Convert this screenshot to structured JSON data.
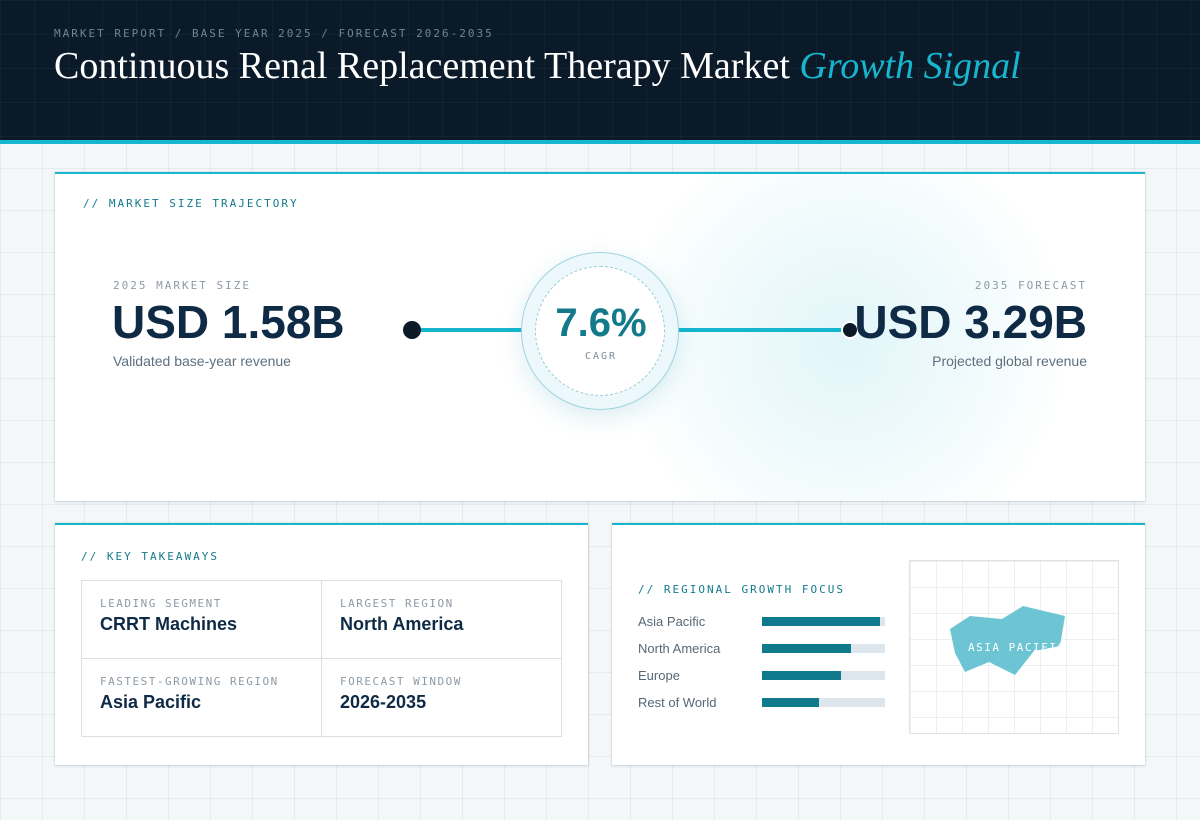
{
  "header": {
    "eyebrow": "MARKET REPORT / BASE YEAR 2025 / FORECAST 2026-2035",
    "title_main": "Continuous Renal Replacement Therapy Market",
    "title_accent": "Growth Signal"
  },
  "trajectory": {
    "label": "// MARKET SIZE TRAJECTORY",
    "start": {
      "year_label": "2025 MARKET SIZE",
      "value": "USD 1.58B",
      "note": "Validated base-year revenue"
    },
    "cagr": {
      "value": "7.6%",
      "label": "CAGR"
    },
    "end": {
      "year_label": "2035 FORECAST",
      "value": "USD 3.29B",
      "note": "Projected global revenue"
    }
  },
  "takeaways": {
    "label": "// KEY TAKEAWAYS",
    "items": [
      {
        "label": "LEADING SEGMENT",
        "value": "CRRT Machines"
      },
      {
        "label": "LARGEST REGION",
        "value": "North America"
      },
      {
        "label": "FASTEST-GROWING REGION",
        "value": "Asia Pacific"
      },
      {
        "label": "FORECAST WINDOW",
        "value": "2026-2035"
      }
    ]
  },
  "regional": {
    "label": "// REGIONAL GROWTH FOCUS",
    "map_label": "ASIA PACIFIC",
    "colors": {
      "bar": "#0e7a8c",
      "track": "#dde6ec",
      "map_fill": "#5dbfcf"
    }
  },
  "chart_data": {
    "type": "bar",
    "categories": [
      "Asia Pacific",
      "North America",
      "Europe",
      "Rest of World"
    ],
    "values": [
      0.96,
      0.72,
      0.64,
      0.46
    ],
    "xlim": [
      0,
      1
    ]
  }
}
